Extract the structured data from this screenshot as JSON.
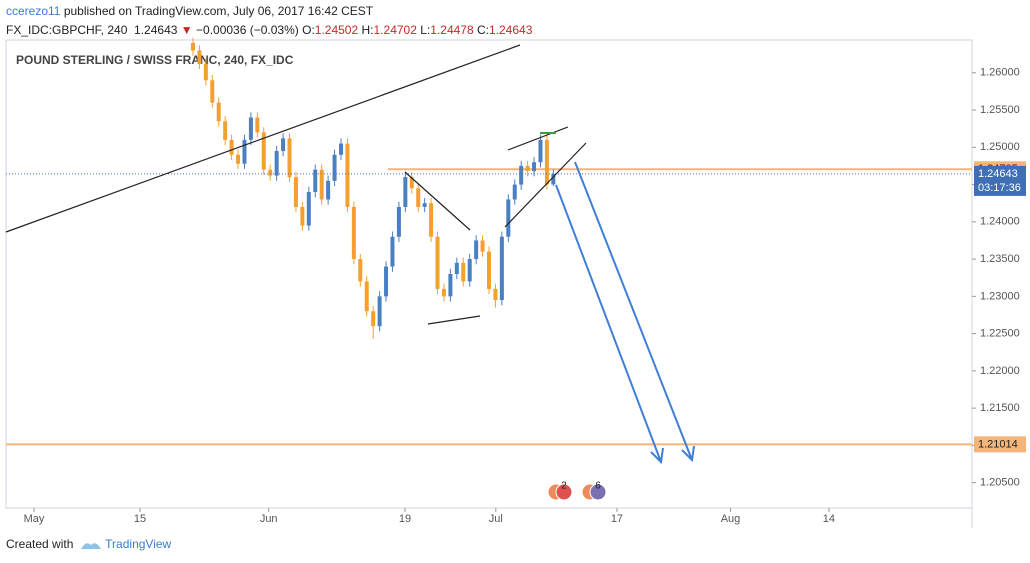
{
  "header": {
    "author": "ccerezo11",
    "published": "published on TradingView.com, July 06, 2017 16:42 CEST",
    "symbol": "FX_IDC:GBPCHF, 240",
    "change": "−0.00036 (−0.03%)",
    "open_label": "O:",
    "high_label": "H:",
    "low_label": "L:",
    "close_label": "C:"
  },
  "chart_data": {
    "type": "candlestick",
    "title": "POUND STERLING / SWISS FRANC, 240, FX_IDC",
    "up_color": "#4a7fc1",
    "down_color": "#f3a030",
    "x": [
      21,
      21.85,
      22.7,
      23.55,
      24.4,
      25.25,
      26.1,
      26.95,
      27.8,
      28.65,
      29.5,
      30.35,
      31.2,
      32.05,
      32.9,
      33.75,
      34.6,
      35.45,
      36.3,
      37.15,
      38,
      38.85,
      39.7,
      40.55,
      41.4,
      42.25,
      43.1,
      43.95,
      44.8,
      45.65,
      46.5,
      47.35,
      48.2,
      49.05,
      49.9,
      50.75,
      51.6,
      52.45,
      53.3,
      54.15,
      55,
      55.85,
      56.7,
      57.55,
      58.4,
      59.25,
      60.1,
      60.95,
      61.8,
      62.65,
      63.5,
      64.35,
      65.2,
      66.05,
      66.9,
      67.75,
      68.6
    ],
    "open": [
      1.264,
      1.263,
      1.2612,
      1.259,
      1.256,
      1.2535,
      1.251,
      1.249,
      1.2478,
      1.251,
      1.254,
      1.252,
      1.247,
      1.2462,
      1.2495,
      1.2512,
      1.246,
      1.242,
      1.2395,
      1.244,
      1.247,
      1.243,
      1.2455,
      1.249,
      1.2505,
      1.242,
      1.235,
      1.232,
      1.228,
      1.226,
      1.23,
      1.234,
      1.238,
      1.242,
      1.246,
      1.2445,
      1.242,
      1.2425,
      1.238,
      1.231,
      1.23,
      1.233,
      1.2345,
      1.232,
      1.235,
      1.2375,
      1.236,
      1.231,
      1.2295,
      1.238,
      1.243,
      1.245,
      1.2475,
      1.2468,
      1.248,
      1.251,
      1.24502
    ],
    "high": [
      1.2647,
      1.2637,
      1.2619,
      1.2597,
      1.2567,
      1.2542,
      1.2517,
      1.2497,
      1.2517,
      1.2547,
      1.2547,
      1.2527,
      1.2477,
      1.2502,
      1.2519,
      1.2519,
      1.2467,
      1.2427,
      1.2447,
      1.2477,
      1.2477,
      1.2462,
      1.2497,
      1.2512,
      1.2512,
      1.2427,
      1.2357,
      1.2327,
      1.2287,
      1.2307,
      1.2347,
      1.2387,
      1.2427,
      1.2467,
      1.2467,
      1.2452,
      1.2432,
      1.2432,
      1.2387,
      1.2317,
      1.2337,
      1.2352,
      1.2352,
      1.2357,
      1.2382,
      1.2382,
      1.2367,
      1.2317,
      1.2387,
      1.2437,
      1.2457,
      1.2482,
      1.2482,
      1.2487,
      1.2517,
      1.2517,
      1.24702
    ],
    "low": [
      1.2623,
      1.2605,
      1.2583,
      1.2553,
      1.2528,
      1.2503,
      1.2483,
      1.2471,
      1.2471,
      1.2503,
      1.2513,
      1.2463,
      1.2455,
      1.2455,
      1.2488,
      1.2453,
      1.2413,
      1.2388,
      1.2388,
      1.2433,
      1.2423,
      1.2423,
      1.2448,
      1.2483,
      1.2413,
      1.2343,
      1.2313,
      1.2273,
      1.2243,
      1.2253,
      1.2293,
      1.2333,
      1.2373,
      1.2413,
      1.2438,
      1.2413,
      1.2413,
      1.2373,
      1.2303,
      1.2293,
      1.2293,
      1.2323,
      1.2313,
      1.2313,
      1.2343,
      1.2353,
      1.2303,
      1.2285,
      1.2288,
      1.2373,
      1.2423,
      1.2443,
      1.2461,
      1.2461,
      1.2473,
      1.24432,
      1.24478
    ],
    "close": [
      1.263,
      1.2612,
      1.259,
      1.256,
      1.2535,
      1.251,
      1.249,
      1.2478,
      1.251,
      1.254,
      1.252,
      1.247,
      1.2462,
      1.2495,
      1.2512,
      1.246,
      1.242,
      1.2395,
      1.244,
      1.247,
      1.243,
      1.2455,
      1.249,
      1.2505,
      1.242,
      1.235,
      1.232,
      1.228,
      1.226,
      1.23,
      1.234,
      1.238,
      1.242,
      1.246,
      1.2445,
      1.242,
      1.2425,
      1.238,
      1.231,
      1.23,
      1.233,
      1.2345,
      1.232,
      1.235,
      1.2375,
      1.236,
      1.231,
      1.2295,
      1.238,
      1.243,
      1.245,
      1.2475,
      1.2468,
      1.248,
      1.251,
      1.24502,
      1.24643
    ],
    "xlim": [
      -3.7,
      123.9
    ],
    "ylim": [
      1.2016,
      1.2644
    ],
    "xticks": [
      {
        "value": 0,
        "label": "May"
      },
      {
        "value": 14,
        "label": "15"
      },
      {
        "value": 31,
        "label": "Jun"
      },
      {
        "value": 49,
        "label": "19"
      },
      {
        "value": 61,
        "label": "Jul"
      },
      {
        "value": 77,
        "label": "17"
      },
      {
        "value": 92,
        "label": "Aug"
      },
      {
        "value": 105,
        "label": "14"
      }
    ],
    "yticks": [
      {
        "value": 1.26,
        "label": "1.26000"
      },
      {
        "value": 1.255,
        "label": "1.25500"
      },
      {
        "value": 1.25,
        "label": "1.25000"
      },
      {
        "value": 1.245,
        "label": "1.24500"
      },
      {
        "value": 1.24,
        "label": "1.24000"
      },
      {
        "value": 1.235,
        "label": "1.23500"
      },
      {
        "value": 1.23,
        "label": "1.23000"
      },
      {
        "value": 1.225,
        "label": "1.22500"
      },
      {
        "value": 1.22,
        "label": "1.22000"
      },
      {
        "value": 1.215,
        "label": "1.21500"
      },
      {
        "value": 1.21,
        "label": "1.21000"
      },
      {
        "value": 1.205,
        "label": "1.20500"
      }
    ],
    "levels": [
      1.24705,
      1.21014
    ],
    "level_color": "#f5b47a",
    "countdown": "03:17:36",
    "events": [
      "2",
      "6"
    ]
  },
  "footer": {
    "created": "Created with",
    "brand": "TradingView"
  }
}
